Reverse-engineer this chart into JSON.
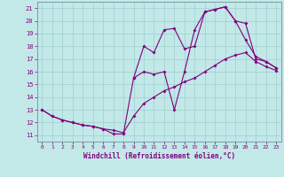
{
  "xlabel": "Windchill (Refroidissement éolien,°C)",
  "bg_color": "#c2e8e8",
  "line_color": "#800080",
  "grid_color": "#aad4d4",
  "xlim": [
    -0.5,
    23.5
  ],
  "ylim": [
    10.5,
    21.5
  ],
  "xticks": [
    0,
    1,
    2,
    3,
    4,
    5,
    6,
    7,
    8,
    9,
    10,
    11,
    12,
    13,
    14,
    15,
    16,
    17,
    18,
    19,
    20,
    21,
    22,
    23
  ],
  "yticks": [
    11,
    12,
    13,
    14,
    15,
    16,
    17,
    18,
    19,
    20,
    21
  ],
  "series": [
    {
      "x": [
        0,
        1,
        2,
        3,
        4,
        5,
        6,
        7,
        8,
        9,
        10,
        11,
        12,
        13,
        14,
        15,
        16,
        17,
        18,
        19,
        20,
        21,
        22,
        23
      ],
      "y": [
        13.0,
        12.5,
        12.2,
        12.0,
        11.8,
        11.7,
        11.5,
        11.4,
        11.2,
        12.5,
        13.5,
        14.0,
        14.5,
        14.8,
        15.2,
        15.5,
        16.0,
        16.5,
        17.0,
        17.3,
        17.5,
        16.8,
        16.4,
        16.1
      ]
    },
    {
      "x": [
        0,
        1,
        2,
        3,
        4,
        5,
        6,
        7,
        8,
        9,
        10,
        11,
        12,
        13,
        14,
        15,
        16,
        17,
        18,
        19,
        20,
        21,
        22,
        23
      ],
      "y": [
        13.0,
        12.5,
        12.2,
        12.0,
        11.8,
        11.7,
        11.5,
        11.1,
        11.1,
        15.5,
        16.0,
        15.8,
        16.0,
        13.0,
        16.0,
        19.3,
        20.7,
        20.9,
        21.1,
        20.0,
        18.5,
        17.2,
        16.8,
        16.3
      ]
    },
    {
      "x": [
        9,
        10,
        11,
        12,
        13,
        14,
        15,
        16,
        17,
        18,
        19,
        20,
        21,
        22,
        23
      ],
      "y": [
        15.5,
        18.0,
        17.5,
        19.3,
        19.4,
        17.8,
        18.0,
        20.7,
        20.9,
        21.1,
        20.0,
        19.8,
        17.0,
        16.8,
        16.3
      ]
    }
  ]
}
